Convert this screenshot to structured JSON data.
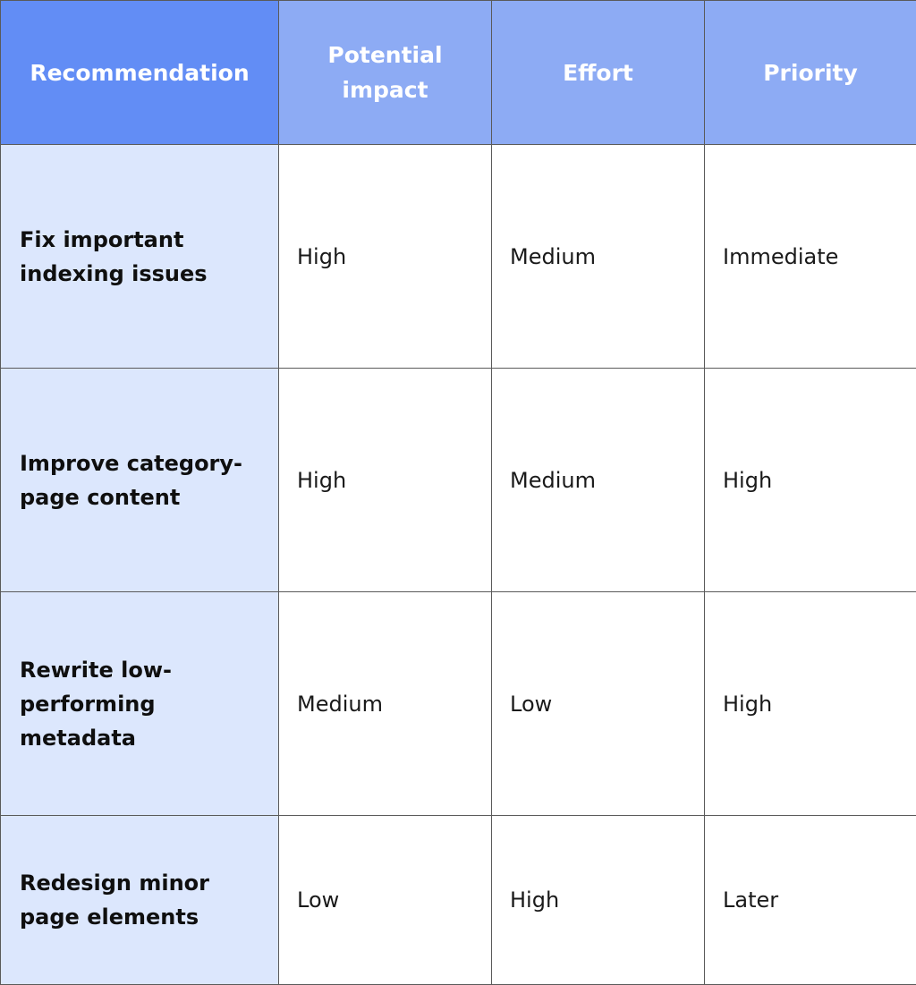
{
  "table": {
    "headers": [
      "Recommendation",
      "Potential impact",
      "Effort",
      "Priority"
    ],
    "rows": [
      {
        "recommendation": "Fix important indexing issues",
        "impact": "High",
        "effort": "Medium",
        "priority": "Immediate"
      },
      {
        "recommendation": "Improve category-page content",
        "impact": "High",
        "effort": "Medium",
        "priority": "High"
      },
      {
        "recommendation": "Rewrite low-performing metadata",
        "impact": "Medium",
        "effort": "Low",
        "priority": "High"
      },
      {
        "recommendation": "Redesign minor page elements",
        "impact": "Low",
        "effort": "High",
        "priority": "Later"
      }
    ]
  },
  "colors": {
    "header_first": "#628df5",
    "header_other": "#8dabf4",
    "label_column": "#dce7fd",
    "border": "#5a5a5a"
  }
}
